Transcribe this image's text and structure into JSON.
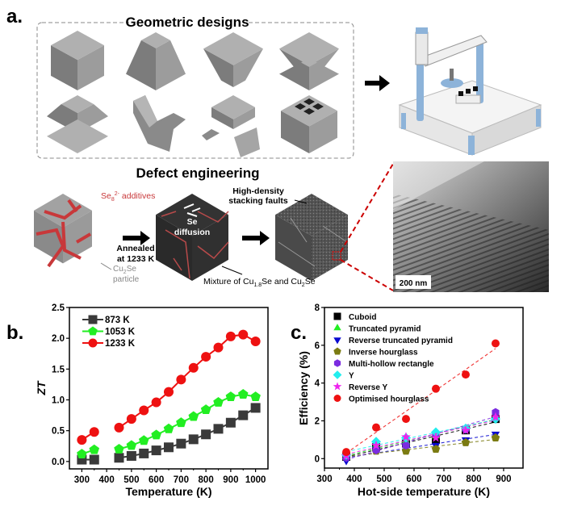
{
  "panel_labels": {
    "a": "a.",
    "b": "b.",
    "c": "c."
  },
  "panel_a": {
    "geometric_title": "Geometric designs",
    "defect_title": "Defect engineering",
    "se_additive": {
      "base": "Se",
      "sub": "8",
      "sup": "2-",
      "rest": " additives"
    },
    "cu2se_particle": {
      "base": "Cu",
      "sub": "2",
      "rest": "Se",
      "line2": "particle"
    },
    "annealed": [
      "Annealed",
      "at 1233 K"
    ],
    "se_diffusion": [
      "Se",
      "diffusion"
    ],
    "stacking_faults": [
      "High-density",
      "stacking faults"
    ],
    "mixture": {
      "p1": "Mixture of Cu",
      "s1": "1.8",
      "p2": "Se and Cu",
      "s2": "2",
      "p3": "Se"
    },
    "scale_bar": "200 nm",
    "colors": {
      "additive_red": "#c8383a",
      "block_grey": "#9a9a9a",
      "printer_blue": "#8db3d9"
    }
  },
  "chart_data": [
    {
      "id": "b",
      "type": "line",
      "xlabel": "Temperature (K)",
      "ylabel": "ZT",
      "xlim": [
        250,
        1050
      ],
      "ylim": [
        -0.12,
        2.5
      ],
      "xticks": [
        300,
        400,
        500,
        600,
        700,
        800,
        900,
        1000
      ],
      "yticks": [
        0.0,
        0.5,
        1.0,
        1.5,
        2.0,
        2.5
      ],
      "grid": false,
      "legend": "top-left",
      "x": [
        300,
        350,
        450,
        500,
        550,
        600,
        650,
        700,
        750,
        800,
        850,
        900,
        950,
        1000
      ],
      "series": [
        {
          "name": "873 K",
          "color": "#3a3a3a",
          "marker": "square",
          "values": [
            0.03,
            0.03,
            0.06,
            0.09,
            0.13,
            0.18,
            0.23,
            0.29,
            0.36,
            0.44,
            0.53,
            0.63,
            0.75,
            0.87
          ]
        },
        {
          "name": "1053 K",
          "color": "#22ee22",
          "marker": "pentagon",
          "values": [
            0.12,
            0.19,
            0.2,
            0.26,
            0.34,
            0.43,
            0.53,
            0.63,
            0.73,
            0.84,
            0.96,
            1.05,
            1.09,
            1.05
          ]
        },
        {
          "name": "1233 K",
          "color": "#ee1111",
          "marker": "circle",
          "values": [
            0.35,
            0.48,
            0.55,
            0.69,
            0.83,
            0.96,
            1.13,
            1.33,
            1.52,
            1.7,
            1.85,
            2.03,
            2.06,
            1.95
          ]
        }
      ]
    },
    {
      "id": "c",
      "type": "scatter",
      "xlabel": "Hot-side temperature (K)",
      "ylabel": "Efficiency (%)",
      "xlim": [
        300,
        965
      ],
      "ylim": [
        -0.5,
        8
      ],
      "xticks": [
        300,
        400,
        500,
        600,
        700,
        800,
        900
      ],
      "yticks": [
        0,
        2,
        4,
        6,
        8
      ],
      "grid": false,
      "legend": "top-left",
      "trendlines": "dashed linear fit per series",
      "x": [
        373,
        473,
        573,
        673,
        773,
        873
      ],
      "series": [
        {
          "name": "Cuboid",
          "color": "#000000",
          "marker": "square",
          "values": [
            0.1,
            0.6,
            0.8,
            1.0,
            1.5,
            2.1
          ]
        },
        {
          "name": "Truncated pyramid",
          "color": "#22ee22",
          "marker": "triangle-up",
          "values": [
            0.1,
            0.7,
            0.9,
            1.2,
            1.6,
            2.2
          ]
        },
        {
          "name": "Reverse truncated pyramid",
          "color": "#0a0ad0",
          "marker": "triangle-down",
          "values": [
            -0.1,
            0.5,
            0.6,
            0.7,
            1.0,
            1.3
          ]
        },
        {
          "name": "Inverse hourglass",
          "color": "#7b7b12",
          "marker": "pentagon",
          "values": [
            0.1,
            0.4,
            0.4,
            0.5,
            0.85,
            1.1
          ]
        },
        {
          "name": "Multi-hollow rectangle",
          "color": "#7b2be0",
          "marker": "hexagon",
          "values": [
            0.05,
            0.45,
            0.7,
            1.3,
            1.55,
            2.45
          ]
        },
        {
          "name": "Y",
          "color": "#22eeee",
          "marker": "diamond",
          "values": [
            0.2,
            0.9,
            1.1,
            1.4,
            1.6,
            2.1
          ]
        },
        {
          "name": "Reverse Y",
          "color": "#ee22ee",
          "marker": "star",
          "values": [
            0.15,
            0.7,
            1.15,
            1.1,
            1.5,
            2.2
          ]
        },
        {
          "name": "Optimised hourglass",
          "color": "#ee1111",
          "marker": "circle",
          "values": [
            0.35,
            1.65,
            2.1,
            3.7,
            4.45,
            6.1
          ]
        }
      ]
    }
  ]
}
